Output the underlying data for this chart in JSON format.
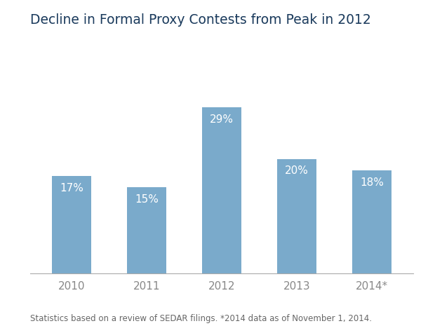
{
  "categories": [
    "2010",
    "2011",
    "2012",
    "2013",
    "2014*"
  ],
  "values": [
    17,
    15,
    29,
    20,
    18
  ],
  "labels": [
    "17%",
    "15%",
    "29%",
    "20%",
    "18%"
  ],
  "bar_color": "#7aaacb",
  "title": "Decline in Formal Proxy Contests from Peak in 2012",
  "title_color": "#1a3a5c",
  "title_fontsize": 13.5,
  "label_color": "#ffffff",
  "label_fontsize": 11,
  "xlabel_color": "#888888",
  "xlabel_fontsize": 11,
  "footnote": "Statistics based on a review of SEDAR filings. *2014 data as of November 1, 2014.",
  "footnote_fontsize": 8.5,
  "footnote_color": "#666666",
  "ylim": [
    0,
    35
  ],
  "background_color": "#ffffff",
  "axis_line_color": "#aaaaaa",
  "bar_width": 0.52
}
